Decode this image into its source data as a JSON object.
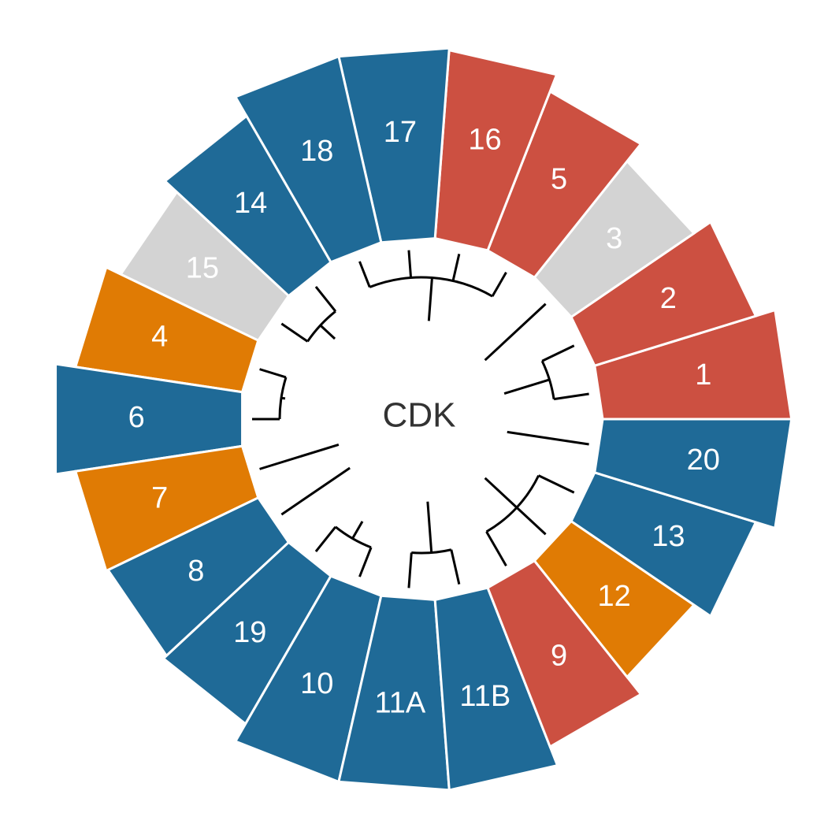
{
  "center": {
    "label": "CDK"
  },
  "colors": {
    "red": "#cc5041",
    "blue": "#1f6a97",
    "orange": "#e07b04",
    "gray": "#d3d3d3"
  },
  "segments": [
    {
      "label": "1",
      "color": "red",
      "level": 0.94
    },
    {
      "label": "2",
      "color": "red",
      "level": 0.84
    },
    {
      "label": "3",
      "color": "gray",
      "level": 0.74
    },
    {
      "label": "5",
      "color": "red",
      "level": 0.85
    },
    {
      "label": "16",
      "color": "red",
      "level": 0.94
    },
    {
      "label": "17",
      "color": "blue",
      "level": 0.95
    },
    {
      "label": "18",
      "color": "blue",
      "level": 0.95
    },
    {
      "label": "14",
      "color": "blue",
      "level": 0.84
    },
    {
      "label": "15",
      "color": "gray",
      "level": 0.76
    },
    {
      "label": "4",
      "color": "orange",
      "level": 0.84
    },
    {
      "label": "6",
      "color": "blue",
      "level": 0.94
    },
    {
      "label": "7",
      "color": "orange",
      "level": 0.84
    },
    {
      "label": "8",
      "color": "blue",
      "level": 0.83
    },
    {
      "label": "19",
      "color": "blue",
      "level": 0.85
    },
    {
      "label": "10",
      "color": "blue",
      "level": 0.95
    },
    {
      "label": "11A",
      "color": "blue",
      "level": 0.95
    },
    {
      "label": "11B",
      "color": "blue",
      "level": 0.95
    },
    {
      "label": "9",
      "color": "red",
      "level": 0.85
    },
    {
      "label": "12",
      "color": "orange",
      "level": 0.74
    },
    {
      "label": "13",
      "color": "blue",
      "level": 0.84
    },
    {
      "label": "20",
      "color": "blue",
      "level": 0.94
    }
  ]
}
